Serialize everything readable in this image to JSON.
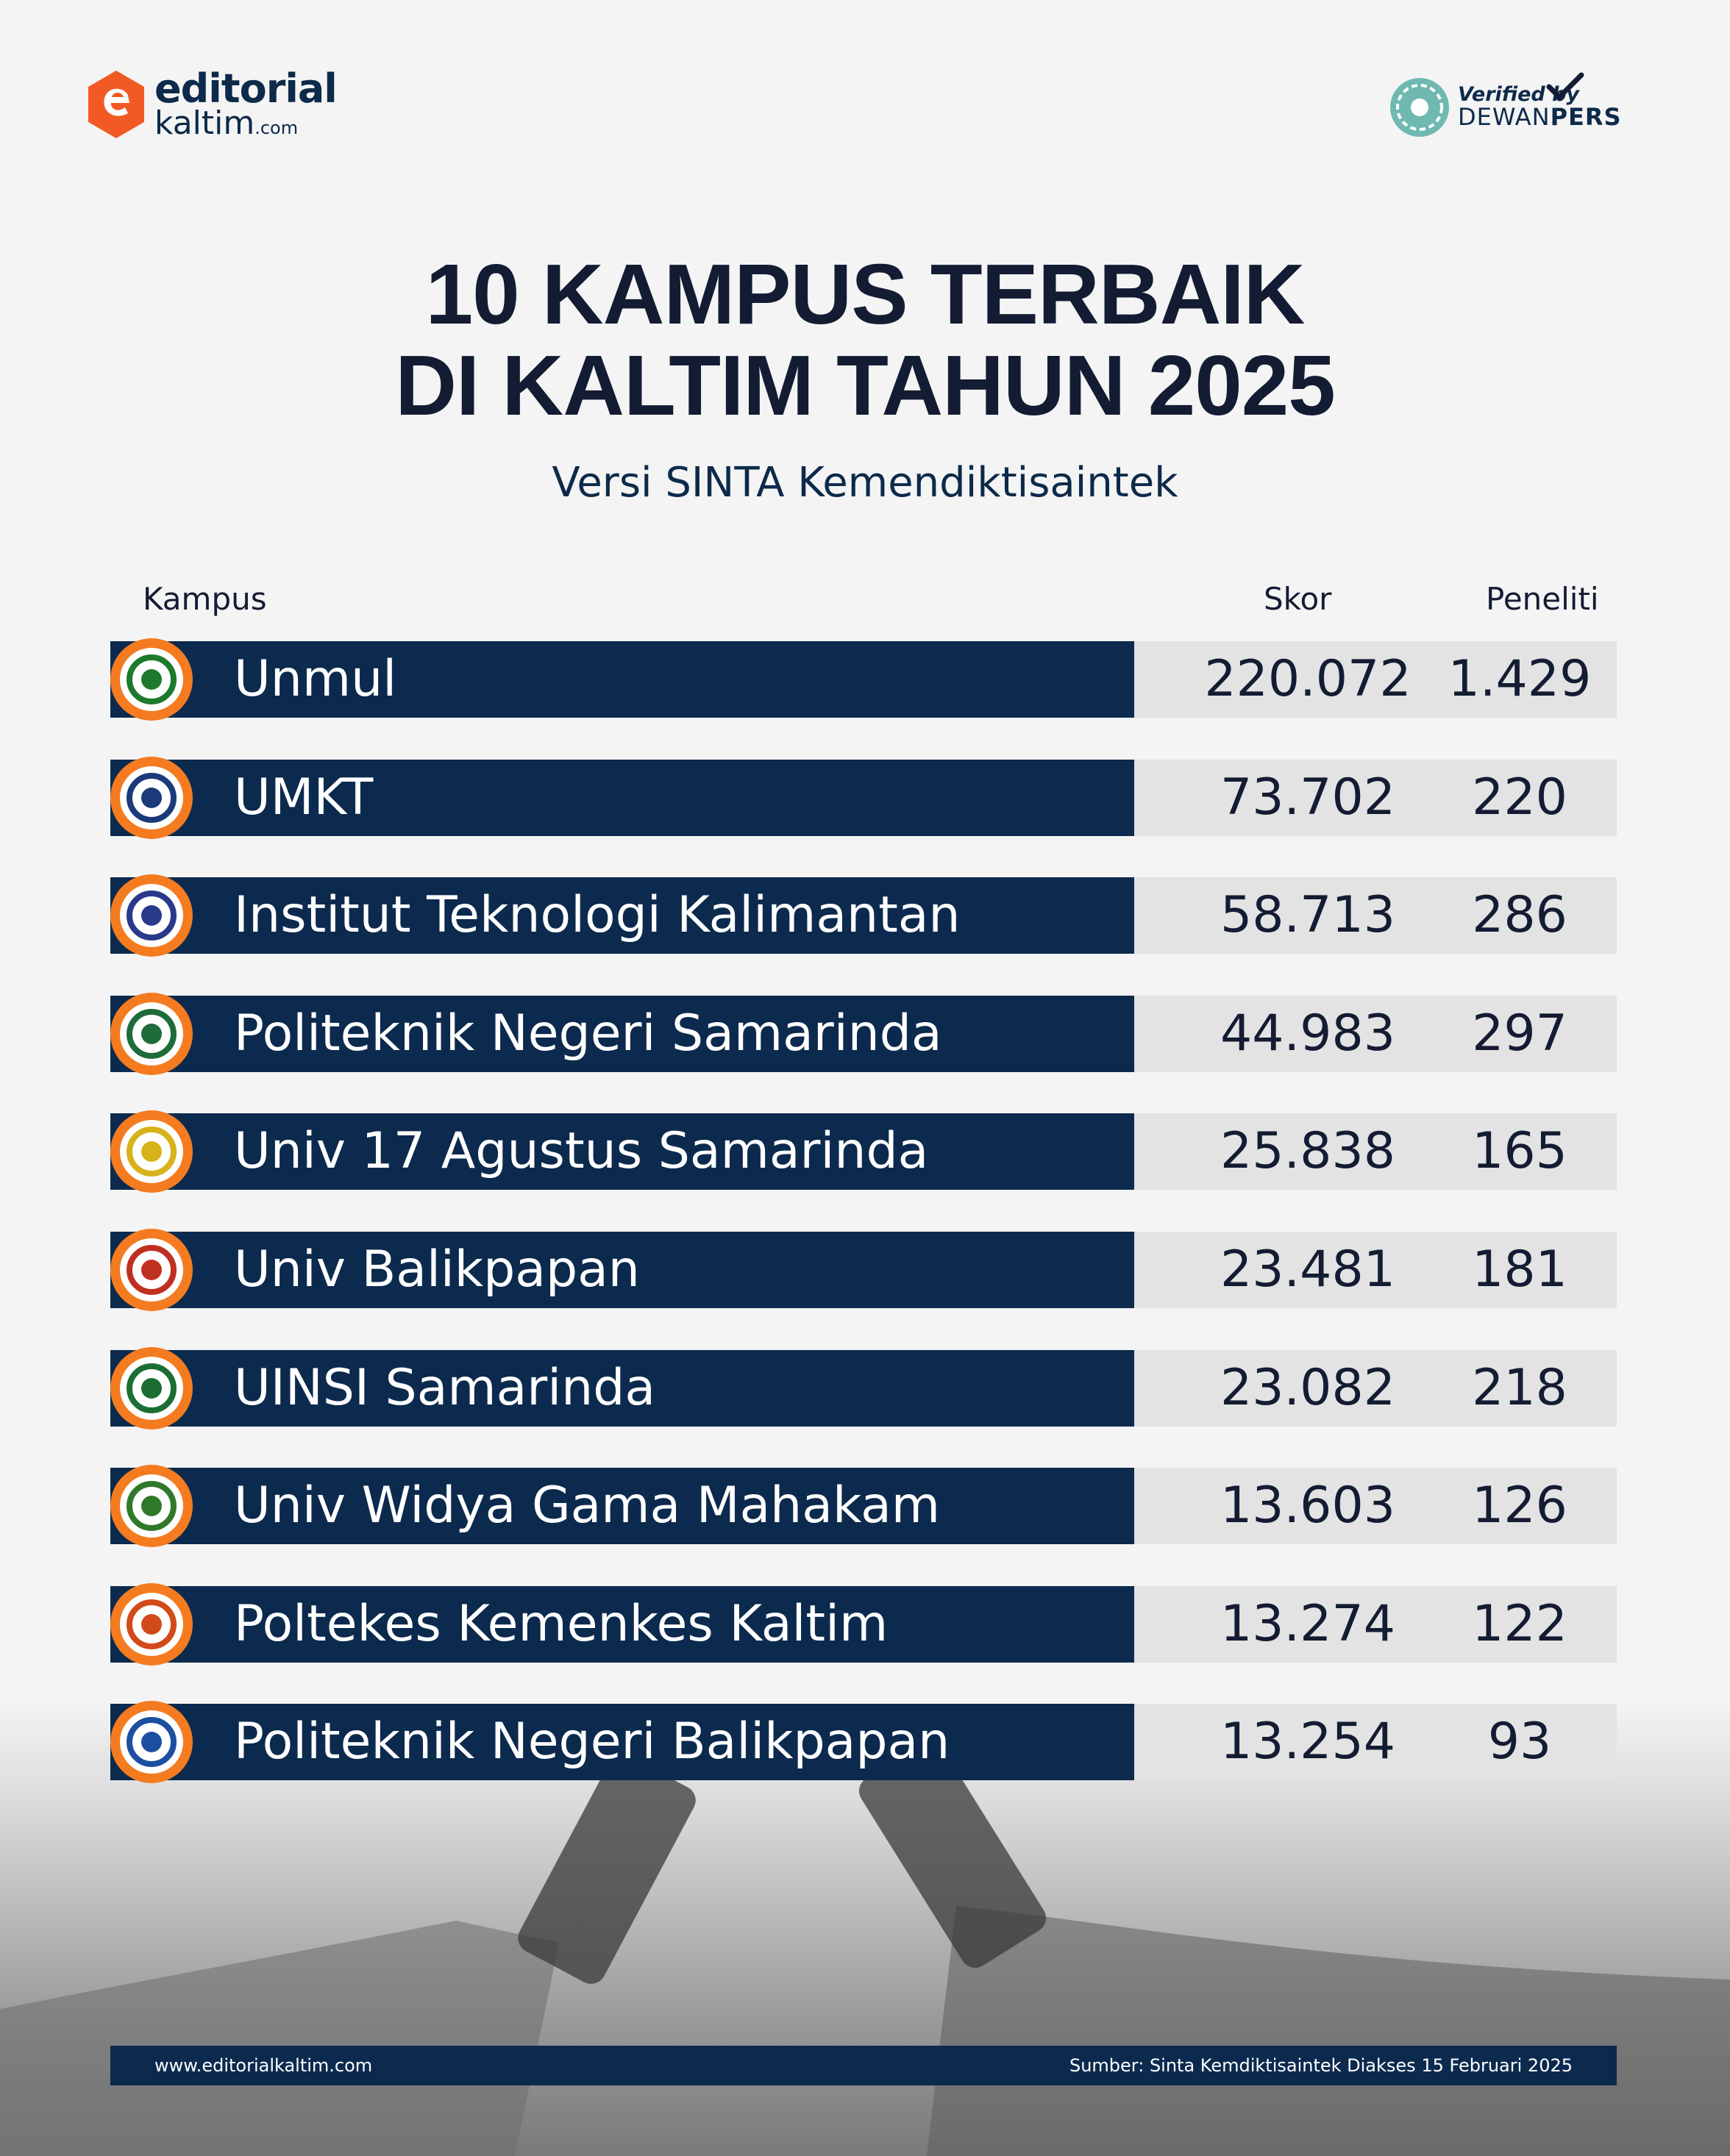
{
  "brand": {
    "name_line1": "editorial",
    "name_line2": "kaltim",
    "name_suffix": ".com"
  },
  "verified": {
    "line1": "Verified by",
    "line2_a": "DEWAN",
    "line2_b": "PERS"
  },
  "title_line1": "10 KAMPUS TERBAIK",
  "title_line2": "DI KALTIM TAHUN 2025",
  "subtitle": "Versi SINTA Kemendiktisaintek",
  "columns": {
    "campus": "Kampus",
    "score": "Skor",
    "researchers": "Peneliti"
  },
  "rows": [
    {
      "name": "Unmul",
      "score": "220.072",
      "researchers": "1.429",
      "logo": "unmul-logo-icon",
      "logo_color": "#1d7a2c"
    },
    {
      "name": "UMKT",
      "score": "73.702",
      "researchers": "220",
      "logo": "umkt-logo-icon",
      "logo_color": "#1a3a7a"
    },
    {
      "name": "Institut Teknologi Kalimantan",
      "score": "58.713",
      "researchers": "286",
      "logo": "itk-logo-icon",
      "logo_color": "#2a3a8a"
    },
    {
      "name": "Politeknik Negeri Samarinda",
      "score": "44.983",
      "researchers": "297",
      "logo": "polnes-logo-icon",
      "logo_color": "#1f6b3a"
    },
    {
      "name": "Univ 17 Agustus Samarinda",
      "score": "25.838",
      "researchers": "165",
      "logo": "untag-logo-icon",
      "logo_color": "#d7b21a"
    },
    {
      "name": "Univ Balikpapan",
      "score": "23.481",
      "researchers": "181",
      "logo": "uniba-logo-icon",
      "logo_color": "#c03020"
    },
    {
      "name": "UINSI Samarinda",
      "score": "23.082",
      "researchers": "218",
      "logo": "uinsi-logo-icon",
      "logo_color": "#1d6e32"
    },
    {
      "name": "Univ Widya Gama Mahakam",
      "score": "13.603",
      "researchers": "126",
      "logo": "uwgm-logo-icon",
      "logo_color": "#2f7a2a"
    },
    {
      "name": "Poltekes Kemenkes Kaltim",
      "score": "13.274",
      "researchers": "122",
      "logo": "poltekkes-logo-icon",
      "logo_color": "#d24a1a"
    },
    {
      "name": "Politeknik Negeri Balikpapan",
      "score": "13.254",
      "researchers": "93",
      "logo": "poltekba-logo-icon",
      "logo_color": "#1c4fa0"
    }
  ],
  "footer": {
    "url": "www.editorialkaltim.com",
    "source": "Sumber: Sinta Kemdiktisaintek Diakses 15 Februari 2025"
  },
  "colors": {
    "navy": "#0c2a4e",
    "orange": "#f47b20",
    "stat_bg": "#e3e3e3"
  }
}
